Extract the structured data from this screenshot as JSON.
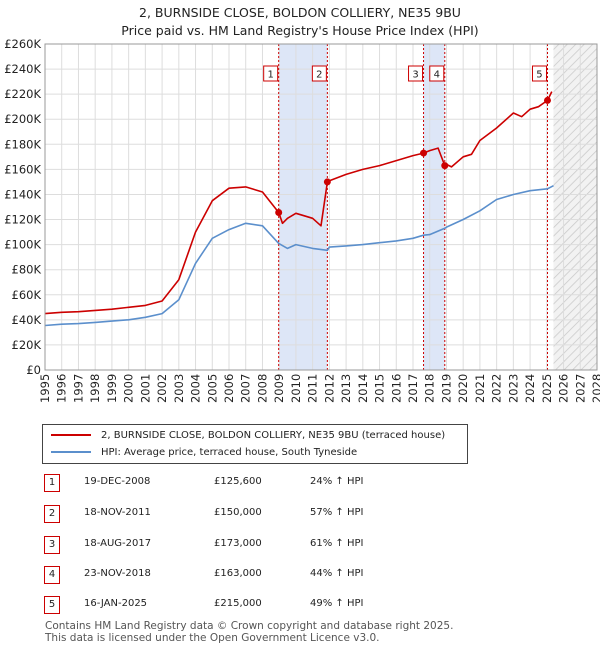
{
  "header": {
    "title": "2, BURNSIDE CLOSE, BOLDON COLLIERY, NE35 9BU",
    "subtitle": "Price paid vs. HM Land Registry's House Price Index (HPI)"
  },
  "legend": {
    "property": "2, BURNSIDE CLOSE, BOLDON COLLIERY, NE35 9BU (terraced house)",
    "hpi": "HPI: Average price, terraced house, South Tyneside"
  },
  "colors": {
    "property": "#cc0000",
    "hpi": "#5b8fcc",
    "shade": "#dde6f7",
    "marker_border": "#cc0000"
  },
  "transactions": [
    {
      "id": "1",
      "date": "19-DEC-2008",
      "price": "£125,600",
      "hpi_change": "24% ↑ HPI"
    },
    {
      "id": "2",
      "date": "18-NOV-2011",
      "price": "£150,000",
      "hpi_change": "57% ↑ HPI"
    },
    {
      "id": "3",
      "date": "18-AUG-2017",
      "price": "£173,000",
      "hpi_change": "61% ↑ HPI"
    },
    {
      "id": "4",
      "date": "23-NOV-2018",
      "price": "£163,000",
      "hpi_change": "44% ↑ HPI"
    },
    {
      "id": "5",
      "date": "16-JAN-2025",
      "price": "£215,000",
      "hpi_change": "49% ↑ HPI"
    }
  ],
  "footer": {
    "line1": "Contains HM Land Registry data © Crown copyright and database right 2025.",
    "line2": "This data is licensed under the Open Government Licence v3.0."
  },
  "chart_data": {
    "type": "line",
    "title": "2, BURNSIDE CLOSE, BOLDON COLLIERY, NE35 9BU",
    "subtitle": "Price paid vs. HM Land Registry's House Price Index (HPI)",
    "xlabel": "",
    "ylabel": "",
    "xlim": [
      1995,
      2028
    ],
    "ylim": [
      0,
      260000
    ],
    "x_ticks": [
      1995,
      1996,
      1997,
      1998,
      1999,
      2000,
      2001,
      2002,
      2003,
      2004,
      2005,
      2006,
      2007,
      2008,
      2009,
      2010,
      2011,
      2012,
      2013,
      2014,
      2015,
      2016,
      2017,
      2018,
      2019,
      2020,
      2021,
      2022,
      2023,
      2024,
      2025,
      2026,
      2027,
      2028
    ],
    "y_ticks": [
      0,
      20000,
      40000,
      60000,
      80000,
      100000,
      120000,
      140000,
      160000,
      180000,
      200000,
      220000,
      240000,
      260000
    ],
    "y_tick_labels": [
      "£0",
      "£20K",
      "£40K",
      "£60K",
      "£80K",
      "£100K",
      "£120K",
      "£140K",
      "£160K",
      "£180K",
      "£200K",
      "£220K",
      "£240K",
      "£260K"
    ],
    "grid": true,
    "legend_position": "below",
    "shaded_spans": [
      [
        2008.97,
        2011.88
      ],
      [
        2017.63,
        2018.9
      ]
    ],
    "forecast_start": 2025.4,
    "series": [
      {
        "name": "2, BURNSIDE CLOSE, BOLDON COLLIERY, NE35 9BU (terraced house)",
        "x": [
          1995,
          1996,
          1997,
          1998,
          1999,
          2000,
          2001,
          2002,
          2003,
          2004,
          2005,
          2006,
          2007,
          2008,
          2008.97,
          2009.2,
          2009.5,
          2010,
          2010.5,
          2011,
          2011.5,
          2011.88,
          2012,
          2013,
          2014,
          2015,
          2016,
          2017,
          2017.63,
          2018,
          2018.5,
          2018.9,
          2019,
          2019.3,
          2020,
          2020.5,
          2021,
          2022,
          2023,
          2023.5,
          2024,
          2024.5,
          2025.04,
          2025.3
        ],
        "values": [
          45000,
          46000,
          46500,
          47500,
          48500,
          50000,
          51500,
          55000,
          72000,
          110000,
          135000,
          145000,
          146000,
          142000,
          125600,
          117000,
          121000,
          125000,
          123000,
          121000,
          115000,
          150000,
          151000,
          156000,
          160000,
          163000,
          167000,
          171000,
          173000,
          175000,
          177000,
          163000,
          164000,
          162000,
          170000,
          172000,
          183000,
          193000,
          205000,
          202000,
          208000,
          210000,
          215000,
          222000
        ]
      },
      {
        "name": "HPI: Average price, terraced house, South Tyneside",
        "x": [
          1995,
          1996,
          1997,
          1998,
          1999,
          2000,
          2001,
          2002,
          2003,
          2004,
          2005,
          2006,
          2007,
          2008,
          2008.97,
          2009.5,
          2010,
          2011,
          2011.88,
          2012,
          2013,
          2014,
          2015,
          2016,
          2017,
          2017.63,
          2018,
          2018.9,
          2019,
          2020,
          2021,
          2022,
          2023,
          2024,
          2025.04,
          2025.4
        ],
        "values": [
          35500,
          36500,
          37000,
          38000,
          39000,
          40000,
          42000,
          45000,
          56000,
          85000,
          105000,
          112000,
          117000,
          115000,
          101000,
          97000,
          100000,
          97000,
          95500,
          98000,
          99000,
          100000,
          101500,
          103000,
          105000,
          107500,
          108000,
          113000,
          114000,
          120000,
          127000,
          136000,
          140000,
          143000,
          144500,
          147000
        ]
      }
    ],
    "sales": [
      {
        "label": "1",
        "x": 2008.97,
        "y": 125600
      },
      {
        "label": "2",
        "x": 2011.88,
        "y": 150000
      },
      {
        "label": "3",
        "x": 2017.63,
        "y": 173000
      },
      {
        "label": "4",
        "x": 2018.9,
        "y": 163000
      },
      {
        "label": "5",
        "x": 2025.04,
        "y": 215000
      }
    ]
  }
}
